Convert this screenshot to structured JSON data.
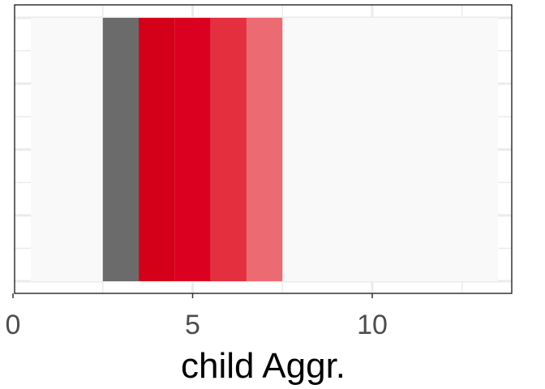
{
  "chart_data": {
    "type": "heatmap",
    "title": "",
    "xlabel": "child Aggr.",
    "ylabel": "",
    "xlim": [
      0,
      14
    ],
    "x_ticks": [
      "0",
      "5",
      "10"
    ],
    "x_tick_values": [
      0,
      5,
      10
    ],
    "background_range": [
      0.5,
      13.5
    ],
    "cells": [
      {
        "x": 3,
        "color": "#6b6b6b"
      },
      {
        "x": 4,
        "color": "#d4001a"
      },
      {
        "x": 5,
        "color": "#dc0020"
      },
      {
        "x": 6,
        "color": "#e42f3e"
      },
      {
        "x": 7,
        "color": "#ec6a72"
      }
    ],
    "colors": {
      "panel_background": "#ffffff",
      "tile_background": "#f9f9f9",
      "grid": "#ebebeb",
      "border": "#000000"
    },
    "grid": true
  }
}
